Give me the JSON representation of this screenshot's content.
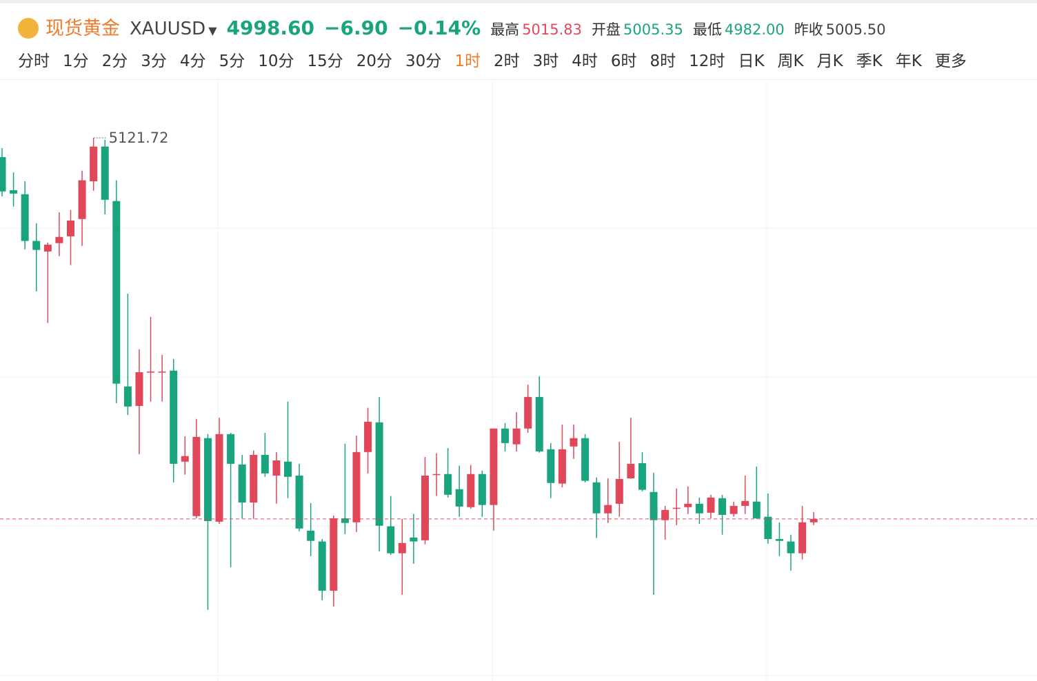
{
  "header": {
    "name": "现货黄金",
    "symbol": "XAUUSD",
    "price": "4998.60",
    "change": "−6.90",
    "change_pct": "−0.14%",
    "stats": [
      {
        "label": "最高",
        "value": "5015.83"
      },
      {
        "label": "开盘",
        "value": "5005.35"
      },
      {
        "label": "最低",
        "value": "4982.00"
      },
      {
        "label": "昨收",
        "value": "5005.50"
      }
    ]
  },
  "tabs": [
    "分时",
    "1分",
    "2分",
    "3分",
    "4分",
    "5分",
    "10分",
    "15分",
    "20分",
    "30分",
    "1时",
    "2时",
    "3时",
    "4时",
    "6时",
    "8时",
    "12时",
    "日K",
    "周K",
    "月K",
    "季K",
    "年K",
    "更多"
  ],
  "active_tab": 10,
  "chart_data": {
    "type": "candlestick",
    "up_color": "#e0485a",
    "down_color": "#19a47f",
    "ylim": [
      4946.9,
      5140.2
    ],
    "high_label": "5121.72",
    "last_price_line": true,
    "open": [
      5115.5,
      5104.8,
      5103.5,
      5088.4,
      5085.0,
      5087.7,
      5089.9,
      5095.5,
      5107.7,
      5118.9,
      5101.3,
      5041.4,
      5035.1,
      5046.0,
      5046.0,
      5046.5,
      5017.1,
      4999.5,
      5024.7,
      4997.7,
      5026.0,
      5016.2,
      5003.9,
      5019.3,
      5012.6,
      5017.1,
      5012.6,
      4994.8,
      4991.3,
      4975.4,
      4998.8,
      4997.5,
      5020.2,
      5029.8,
      4996.2,
      4987.5,
      4992.6,
      4991.7,
      5012.9,
      5013.1,
      5008.2,
      5002.4,
      5013.1,
      5003.1,
      5027.8,
      5022.7,
      5027.8,
      5038.0,
      5021.1,
      5010.0,
      5022.0,
      5024.7,
      5010.4,
      5000.4,
      5003.5,
      5011.7,
      5016.6,
      5007.3,
      4998.2,
      5001.9,
      5002.4,
      5003.5,
      5000.6,
      5005.3,
      5000.2,
      5002.8,
      5004.2,
      4999.3,
      4992.1,
      4991.3,
      4987.5,
      4997.5
    ],
    "high": [
      5118.4,
      5110.6,
      5107.7,
      5094.1,
      5087.9,
      5097.7,
      5098.4,
      5111.1,
      5121.72,
      5121.1,
      5108.0,
      5071.4,
      5053.4,
      5063.9,
      5051.6,
      5050.3,
      5025.3,
      5030.9,
      5026.0,
      5031.3,
      5026.4,
      5019.3,
      5020.7,
      5026.4,
      5020.2,
      5036.5,
      5016.4,
      5003.7,
      4992.1,
      4999.7,
      5022.9,
      5025.5,
      5034.5,
      5038.0,
      5006.0,
      4998.6,
      5000.2,
      5018.6,
      5019.8,
      5021.5,
      5015.8,
      5016.0,
      5014.2,
      5027.8,
      5029.6,
      5033.1,
      5042.0,
      5044.7,
      5023.1,
      5029.1,
      5029.1,
      5026.0,
      5012.0,
      5011.7,
      5023.5,
      5031.3,
      5020.2,
      5013.5,
      5002.8,
      5008.4,
      5009.1,
      5005.5,
      5006.4,
      5006.4,
      5004.2,
      5012.6,
      5015.5,
      5006.8,
      4997.5,
      4993.5,
      5002.8,
      5000.8
    ],
    "low": [
      5102.8,
      5099.5,
      5085.7,
      5072.1,
      5061.9,
      5083.5,
      5080.6,
      5086.8,
      5104.6,
      5097.0,
      5036.0,
      5032.2,
      5019.5,
      5036.5,
      5036.5,
      5010.4,
      5012.9,
      4998.8,
      4969.2,
      4997.0,
      4983.0,
      4998.8,
      4998.6,
      5012.2,
      5003.5,
      5005.3,
      4994.6,
      4986.6,
      4972.3,
      4970.3,
      4993.7,
      4994.4,
      5013.3,
      4988.1,
      4987.0,
      4974.1,
      4984.1,
      4990.4,
      5006.0,
      5005.5,
      4999.3,
      5001.9,
      4999.3,
      4994.8,
      5020.4,
      5020.4,
      5026.4,
      5020.0,
      5005.3,
      5008.8,
      5018.0,
      5010.4,
      4992.4,
      4997.3,
      4999.3,
      5011.5,
      5007.5,
      4974.1,
      4991.9,
      4996.6,
      5000.2,
      4997.0,
      4998.8,
      4993.5,
      4999.3,
      5000.2,
      4998.6,
      4990.6,
      4986.6,
      4981.9,
      4985.5,
      4996.6
    ],
    "close": [
      5104.4,
      5103.7,
      5088.4,
      5085.5,
      5087.2,
      5089.7,
      5095.0,
      5108.0,
      5118.9,
      5101.7,
      5042.3,
      5034.9,
      5046.0,
      5046.2,
      5046.2,
      5016.4,
      5018.9,
      5025.1,
      4997.9,
      5026.0,
      5016.4,
      5003.9,
      5019.3,
      5013.3,
      5017.5,
      5012.2,
      4995.5,
      4991.5,
      4975.4,
      4998.8,
      4997.3,
      5020.2,
      5030.0,
      4996.4,
      4987.5,
      4990.8,
      4991.3,
      5012.6,
      5013.1,
      5006.4,
      5002.6,
      5013.1,
      5003.1,
      5027.8,
      5023.1,
      5027.8,
      5038.0,
      5020.4,
      5010.2,
      5021.1,
      5024.7,
      5010.9,
      5000.4,
      5003.1,
      5011.5,
      5016.4,
      5008.0,
      4998.2,
      5001.5,
      5002.2,
      5003.5,
      5000.4,
      5005.5,
      4999.9,
      5002.8,
      5004.4,
      4998.8,
      4992.1,
      4991.5,
      4987.5,
      4997.5,
      4998.6
    ]
  }
}
